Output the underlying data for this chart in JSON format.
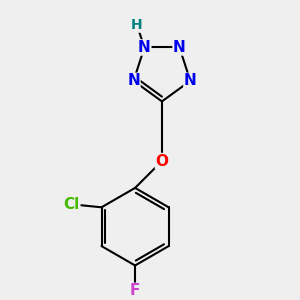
{
  "background_color": "#efefef",
  "atom_colors": {
    "N": "#0000ee",
    "H": "#008080",
    "O": "#ff0000",
    "Cl": "#44bb00",
    "F": "#cc44cc",
    "C": "#000000"
  },
  "bond_color": "#000000",
  "bond_width": 1.5,
  "font_size_atom": 11,
  "font_size_H": 10
}
